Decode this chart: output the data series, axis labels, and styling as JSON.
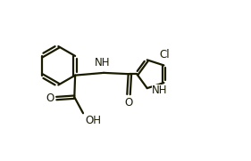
{
  "bg_color": "#ffffff",
  "line_color": "#1a1a00",
  "line_width": 1.6,
  "font_size": 8.5,
  "label_color": "#1a1a00",
  "xlim": [
    0,
    10
  ],
  "ylim": [
    0,
    6.5
  ]
}
